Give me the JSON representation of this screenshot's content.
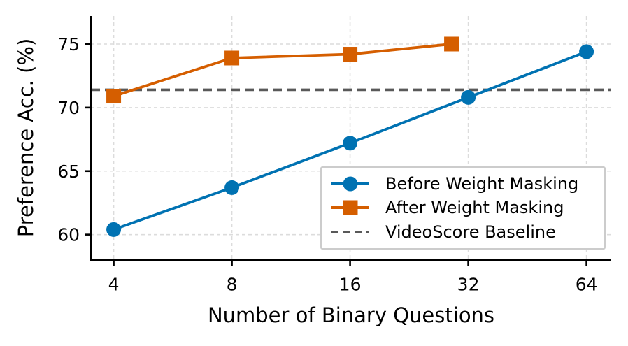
{
  "chart_data": {
    "type": "line",
    "title": "",
    "xlabel": "Number of Binary Questions",
    "ylabel": "Preference Acc. (%)",
    "x_scale": "log2",
    "x_ticks": [
      4,
      8,
      16,
      32,
      64
    ],
    "y_ticks": [
      60,
      65,
      70,
      75
    ],
    "xlim": [
      3.5,
      74
    ],
    "ylim": [
      58,
      77.2
    ],
    "grid": true,
    "grid_color": "#dcdcdc",
    "axis_color": "#000000",
    "legend_position": "lower-right",
    "series": [
      {
        "name": "Before Weight Masking",
        "color": "#0072b2",
        "marker": "circle",
        "x": [
          4,
          8,
          16,
          32,
          64
        ],
        "y": [
          60.4,
          63.7,
          67.2,
          70.8,
          74.4
        ]
      },
      {
        "name": "After Weight Masking",
        "color": "#d55e00",
        "marker": "square",
        "x": [
          4,
          8,
          16,
          29
        ],
        "y": [
          70.9,
          73.9,
          74.2,
          75.0
        ]
      }
    ],
    "baseline": {
      "name": "VideoScore Baseline",
      "value": 71.4,
      "color": "#595959",
      "style": "dashed"
    }
  }
}
